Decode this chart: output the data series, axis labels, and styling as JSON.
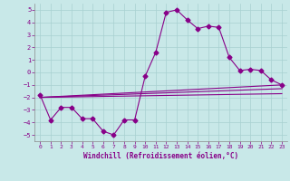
{
  "xlabel": "Windchill (Refroidissement éolien,°C)",
  "xlim": [
    -0.5,
    23.5
  ],
  "ylim": [
    -5.5,
    5.5
  ],
  "xticks": [
    0,
    1,
    2,
    3,
    4,
    5,
    6,
    7,
    8,
    9,
    10,
    11,
    12,
    13,
    14,
    15,
    16,
    17,
    18,
    19,
    20,
    21,
    22,
    23
  ],
  "yticks": [
    -5,
    -4,
    -3,
    -2,
    -1,
    0,
    1,
    2,
    3,
    4,
    5
  ],
  "background_color": "#c8e8e8",
  "grid_color": "#a8d0d0",
  "line_color": "#880088",
  "line_width": 0.8,
  "marker": "D",
  "marker_size": 2.5,
  "series1_x": [
    0,
    1,
    2,
    3,
    4,
    5,
    6,
    7,
    8,
    9,
    10,
    11,
    12,
    13,
    14,
    15,
    16,
    17,
    18,
    19,
    20,
    21,
    22,
    23
  ],
  "series1_y": [
    -1.8,
    -3.8,
    -2.8,
    -2.8,
    -3.7,
    -3.7,
    -4.7,
    -5.0,
    -3.8,
    -3.8,
    -0.3,
    1.6,
    4.8,
    5.0,
    4.2,
    3.5,
    3.7,
    3.6,
    1.2,
    0.15,
    0.25,
    0.15,
    -0.6,
    -1.0
  ],
  "series2_x": [
    0,
    23
  ],
  "series2_y": [
    -2.0,
    -1.0
  ],
  "series3_x": [
    0,
    23
  ],
  "series3_y": [
    -2.0,
    -1.3
  ],
  "series4_x": [
    0,
    23
  ],
  "series4_y": [
    -2.0,
    -1.7
  ]
}
